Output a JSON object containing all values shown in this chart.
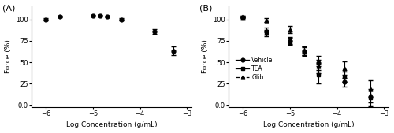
{
  "panel_A": {
    "label": "(A)",
    "x": [
      -6.0,
      -5.7,
      -5.0,
      -4.85,
      -4.7,
      -4.4,
      -3.7,
      -3.3
    ],
    "y": [
      100,
      103,
      104,
      104,
      103,
      100,
      86,
      63
    ],
    "yerr": [
      1.5,
      1.0,
      1.0,
      1.0,
      1.0,
      1.5,
      3.0,
      5.0
    ],
    "fit_p0": [
      20,
      106,
      -3.0,
      0.8
    ],
    "xlabel": "Log Concentration (g/mL)",
    "ylabel": "Force (%)",
    "xlim": [
      -6.3,
      -2.9
    ],
    "ylim": [
      -2,
      115
    ],
    "yticks": [
      0,
      25,
      50,
      75,
      100
    ],
    "ytick_labels": [
      "0.0",
      "25",
      "50",
      "75",
      "100"
    ],
    "xticks": [
      -6,
      -5,
      -4,
      -3
    ]
  },
  "panel_B": {
    "label": "(B)",
    "vehicle": {
      "x": [
        -6.0,
        -5.5,
        -5.0,
        -4.7,
        -4.4,
        -3.85,
        -3.3
      ],
      "y": [
        102,
        86,
        75,
        63,
        49,
        27,
        10
      ],
      "yerr": [
        2,
        4,
        4,
        5,
        8,
        5,
        7
      ],
      "linestyle": "-",
      "marker": "o",
      "label": "Vehicle",
      "fit_p0": [
        5,
        103,
        -4.6,
        1.0
      ]
    },
    "tea": {
      "x": [
        -6.0,
        -5.5,
        -5.0,
        -4.7,
        -4.4,
        -3.85,
        -3.3
      ],
      "y": [
        101,
        84,
        74,
        62,
        35,
        33,
        9
      ],
      "yerr": [
        1,
        4,
        4,
        5,
        10,
        6,
        10
      ],
      "linestyle": "-",
      "marker": "s",
      "label": "TEA",
      "fit_p0": [
        5,
        103,
        -4.6,
        1.0
      ]
    },
    "glib": {
      "x": [
        -6.0,
        -5.5,
        -5.0,
        -4.7,
        -4.4,
        -3.85,
        -3.3
      ],
      "y": [
        103,
        99,
        88,
        63,
        45,
        43,
        19
      ],
      "yerr": [
        1,
        2,
        4,
        5,
        8,
        8,
        10
      ],
      "linestyle": "--",
      "marker": "^",
      "label": "Glib",
      "fit_p0": [
        5,
        103,
        -4.2,
        1.0
      ]
    },
    "xlabel": "Log Concentration (g/mL)",
    "ylabel": "Force (%)",
    "xlim": [
      -6.3,
      -2.9
    ],
    "ylim": [
      -2,
      115
    ],
    "yticks": [
      0,
      25,
      50,
      75,
      100
    ],
    "ytick_labels": [
      "0.0",
      "25",
      "50",
      "75",
      "100"
    ],
    "xticks": [
      -6,
      -5,
      -4,
      -3
    ]
  },
  "color": "#000000",
  "figsize": [
    5.0,
    1.69
  ],
  "dpi": 100
}
